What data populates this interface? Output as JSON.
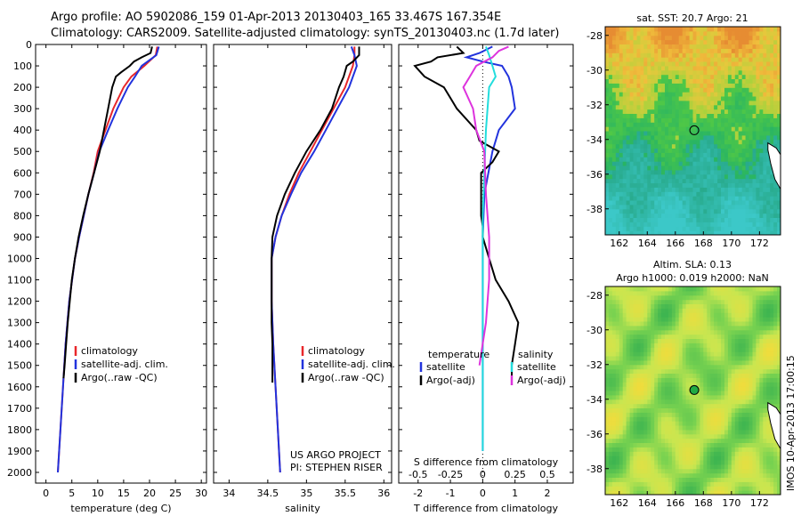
{
  "header": {
    "line1": "Argo profile: AO 5902086_159 01-Apr-2013 20130403_165 33.467S 167.354E",
    "line2": "Climatology: CARS2009. Satellite-adjusted climatology: synTS_20130403.nc (1.7d later)"
  },
  "colors": {
    "climatology": "#e8272b",
    "satellite": "#2233dd",
    "argo": "#000000",
    "sat_s": "#22dddd",
    "argo_s": "#dd33dd"
  },
  "chart_data": [
    {
      "type": "line",
      "panel": "temperature",
      "xlabel": "temperature (deg C)",
      "ylabel": "",
      "xlim": [
        -2,
        31
      ],
      "ylim": [
        2050,
        0
      ],
      "xticks": [
        0,
        5,
        10,
        15,
        20,
        25,
        30
      ],
      "yticks": [
        0,
        100,
        200,
        300,
        400,
        500,
        600,
        700,
        800,
        900,
        1000,
        1100,
        1200,
        1300,
        1400,
        1500,
        1600,
        1700,
        1800,
        1900,
        2000
      ],
      "legend_position": "bottom-left",
      "series": [
        {
          "name": "climatology",
          "color_key": "climatology",
          "y": [
            10,
            50,
            100,
            150,
            200,
            300,
            400,
            500,
            600,
            700,
            800,
            900,
            1000,
            1200,
            1400,
            1600,
            1800,
            2000
          ],
          "x": [
            21.5,
            21.2,
            19.0,
            16.5,
            15.0,
            13.0,
            11.5,
            10.0,
            9.2,
            8.2,
            7.3,
            6.4,
            5.6,
            4.5,
            3.8,
            3.3,
            2.8,
            2.3
          ]
        },
        {
          "name": "satellite-adj. clim.",
          "color_key": "satellite",
          "y": [
            10,
            50,
            100,
            150,
            200,
            300,
            400,
            500,
            600,
            700,
            800,
            900,
            1000,
            1200,
            1400,
            1600,
            1800,
            2000
          ],
          "x": [
            21.8,
            21.3,
            18.5,
            17.2,
            15.8,
            13.8,
            12.0,
            10.3,
            9.3,
            8.2,
            7.3,
            6.4,
            5.6,
            4.5,
            3.8,
            3.3,
            2.8,
            2.3
          ]
        },
        {
          "name": "Argo(..raw -QC)",
          "color_key": "argo",
          "y": [
            10,
            40,
            60,
            80,
            100,
            130,
            150,
            200,
            300,
            400,
            500,
            600,
            700,
            800,
            900,
            1000,
            1100,
            1200,
            1300,
            1400,
            1500,
            1560
          ],
          "x": [
            20.5,
            20.2,
            18.5,
            17.0,
            16.2,
            14.5,
            13.5,
            12.8,
            12.0,
            11.2,
            10.4,
            9.3,
            8.2,
            7.2,
            6.3,
            5.6,
            5.0,
            4.6,
            4.2,
            3.9,
            3.6,
            3.4
          ]
        }
      ]
    },
    {
      "type": "line",
      "panel": "salinity",
      "xlabel": "salinity",
      "ylabel": "",
      "xlim": [
        33.8,
        36.1
      ],
      "ylim": [
        2050,
        0
      ],
      "xticks": [
        34,
        34.5,
        35,
        35.5,
        36
      ],
      "legend_position": "bottom-right",
      "series": [
        {
          "name": "climatology",
          "color_key": "climatology",
          "y": [
            10,
            50,
            100,
            200,
            300,
            400,
            500,
            600,
            700,
            800,
            900,
            1000,
            1200,
            1400,
            1600,
            1800,
            2000
          ],
          "x": [
            35.62,
            35.62,
            35.6,
            35.5,
            35.35,
            35.2,
            35.05,
            34.9,
            34.78,
            34.68,
            34.6,
            34.55,
            34.55,
            34.57,
            34.6,
            34.63,
            34.66
          ]
        },
        {
          "name": "satellite-adj. clim.",
          "color_key": "satellite",
          "y": [
            10,
            50,
            100,
            200,
            300,
            400,
            500,
            600,
            700,
            800,
            900,
            1000,
            1200,
            1400,
            1600,
            1800,
            2000
          ],
          "x": [
            35.58,
            35.62,
            35.65,
            35.55,
            35.4,
            35.25,
            35.1,
            34.93,
            34.8,
            34.68,
            34.6,
            34.55,
            34.55,
            34.57,
            34.6,
            34.63,
            34.66
          ]
        },
        {
          "name": "Argo(..raw -QC)",
          "color_key": "argo",
          "y": [
            10,
            50,
            80,
            100,
            150,
            200,
            300,
            400,
            500,
            600,
            700,
            800,
            900,
            1000,
            1100,
            1200,
            1300,
            1400,
            1500,
            1580
          ],
          "x": [
            35.68,
            35.68,
            35.6,
            35.52,
            35.48,
            35.42,
            35.33,
            35.18,
            35.0,
            34.85,
            34.72,
            34.62,
            34.56,
            34.55,
            34.55,
            34.55,
            34.55,
            34.56,
            34.56,
            34.56
          ]
        }
      ]
    },
    {
      "type": "line",
      "panel": "difference",
      "xlabel": "T difference from climatology",
      "x2label": "S difference from climatology",
      "ylabel": "",
      "xlim": [
        -2.6,
        2.8
      ],
      "ylim": [
        2050,
        0
      ],
      "xticks": [
        -2,
        -1,
        0,
        1,
        2
      ],
      "x2ticks": [
        "-0.5",
        "-0.25",
        "0",
        "0.25",
        "0.5"
      ],
      "x2tick_values": [
        -2,
        -1,
        0,
        1,
        2
      ],
      "legend_position": "bottom",
      "legend_groups": {
        "temperature": "temperature",
        "salinity": "salinity"
      },
      "series": [
        {
          "name": "satellite",
          "group": "temperature",
          "color_key": "satellite",
          "y": [
            10,
            40,
            60,
            80,
            100,
            150,
            200,
            300,
            400,
            500,
            700,
            900,
            1000,
            1200,
            1500,
            1800,
            1900
          ],
          "x": [
            0.3,
            -0.1,
            -0.5,
            0.0,
            0.6,
            0.8,
            0.9,
            1.0,
            0.5,
            0.3,
            0.05,
            0.0,
            0.0,
            0.0,
            0.0,
            0.0,
            0.0
          ]
        },
        {
          "name": "Argo(-adj)",
          "group": "temperature",
          "color_key": "argo",
          "y": [
            10,
            40,
            60,
            80,
            100,
            150,
            200,
            300,
            400,
            450,
            500,
            550,
            600,
            700,
            800,
            850,
            900,
            1000,
            1100,
            1200,
            1300,
            1400,
            1500,
            1560
          ],
          "x": [
            -0.8,
            -0.6,
            -1.4,
            -1.6,
            -2.1,
            -1.8,
            -1.2,
            -0.8,
            -0.2,
            -0.1,
            0.5,
            0.3,
            -0.05,
            -0.05,
            -0.05,
            0.0,
            0.0,
            0.2,
            0.4,
            0.8,
            1.1,
            1.0,
            0.9,
            0.9
          ]
        },
        {
          "name": "satellite",
          "group": "salinity",
          "color_key": "sat_s",
          "y": [
            10,
            50,
            100,
            150,
            200,
            400,
            600,
            800,
            1000,
            1200,
            1400,
            1600,
            1800,
            1900
          ],
          "x": [
            0.1,
            0.2,
            0.3,
            0.4,
            0.2,
            0.1,
            0.05,
            0.0,
            0.0,
            0.0,
            0.0,
            0.0,
            0.0,
            0.0
          ]
        },
        {
          "name": "Argo(-adj)",
          "group": "salinity",
          "color_key": "argo_s",
          "y": [
            10,
            30,
            60,
            100,
            150,
            200,
            300,
            400,
            500,
            700,
            900,
            1100,
            1300,
            1500
          ],
          "x": [
            0.8,
            0.5,
            0.3,
            -0.2,
            -0.4,
            -0.6,
            -0.3,
            -0.2,
            0.05,
            0.1,
            0.2,
            0.2,
            0.1,
            -0.1
          ]
        }
      ]
    },
    {
      "type": "heatmap",
      "panel": "sst-map",
      "title": "sat. SST: 20.7 Argo: 21",
      "xlim": [
        161,
        173.5
      ],
      "ylim": [
        -39.5,
        -27.5
      ],
      "xticks": [
        162,
        164,
        166,
        168,
        170,
        172
      ],
      "yticks": [
        -28,
        -30,
        -32,
        -34,
        -36,
        -38
      ],
      "marker": {
        "lon": 167.35,
        "lat": -33.47
      }
    },
    {
      "type": "heatmap",
      "panel": "sla-map",
      "title": "Altim. SLA: 0.13",
      "subtitle": "Argo h1000: 0.019 h2000: NaN",
      "xlim": [
        161,
        173.5
      ],
      "ylim": [
        -39.5,
        -27.5
      ],
      "xticks": [
        162,
        164,
        166,
        168,
        170,
        172
      ],
      "yticks": [
        -28,
        -30,
        -32,
        -34,
        -36,
        -38
      ],
      "marker": {
        "lon": 167.35,
        "lat": -33.47
      }
    }
  ],
  "text_labels": {
    "temp_legend": [
      "climatology",
      "satellite-adj. clim.",
      "Argo(..raw -QC)"
    ],
    "sal_legend": [
      "climatology",
      "satellite-adj. clim.",
      "Argo(..raw -QC)"
    ],
    "project_line1": "US ARGO PROJECT",
    "project_line2": "PI: STEPHEN RISER",
    "credit": "IMOS 10-Apr-2013 17:00:15"
  }
}
